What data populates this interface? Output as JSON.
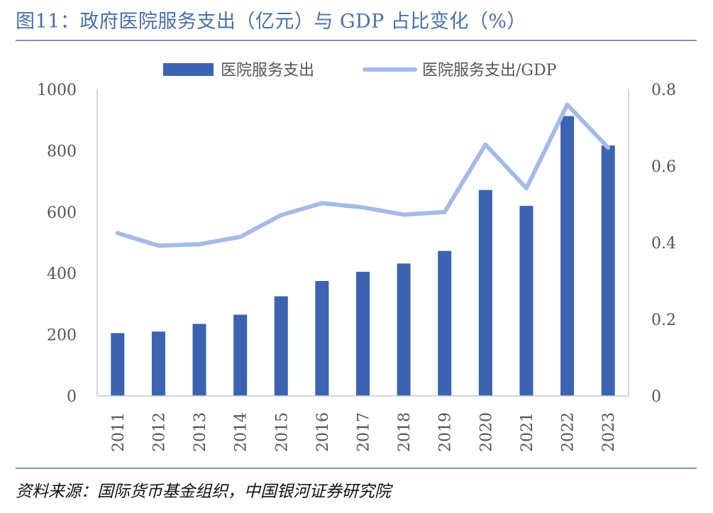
{
  "page": {
    "title": "图11：政府医院服务支出（亿元）与 GDP 占比变化（%）",
    "source": "资料来源：国际货币基金组织，中国银河证券研究院"
  },
  "chart_data": {
    "type": "bar",
    "title": "政府医院服务支出（亿元）与 GDP 占比变化（%）",
    "categories": [
      "2011",
      "2012",
      "2013",
      "2014",
      "2015",
      "2016",
      "2017",
      "2018",
      "2019",
      "2020",
      "2021",
      "2022",
      "2023"
    ],
    "series": [
      {
        "name": "医院服务支出",
        "type": "bar",
        "axis": "left",
        "color": "#3b63b0",
        "values": [
          205,
          210,
          235,
          265,
          325,
          375,
          405,
          432,
          473,
          672,
          620,
          913,
          817
        ]
      },
      {
        "name": "医院服务支出/GDP",
        "type": "line",
        "axis": "right",
        "color": "#a6bae6",
        "values": [
          0.425,
          0.392,
          0.396,
          0.415,
          0.472,
          0.503,
          0.492,
          0.473,
          0.48,
          0.656,
          0.542,
          0.76,
          0.648
        ]
      }
    ],
    "ylim_left": [
      0,
      1000
    ],
    "yticks_left": [
      "0",
      "200",
      "400",
      "600",
      "800",
      "1000"
    ],
    "ylim_right": [
      0,
      0.8
    ],
    "yticks_right": [
      "0",
      "0.2",
      "0.4",
      "0.6",
      "0.8"
    ],
    "legend_position": "top",
    "grid": false
  }
}
